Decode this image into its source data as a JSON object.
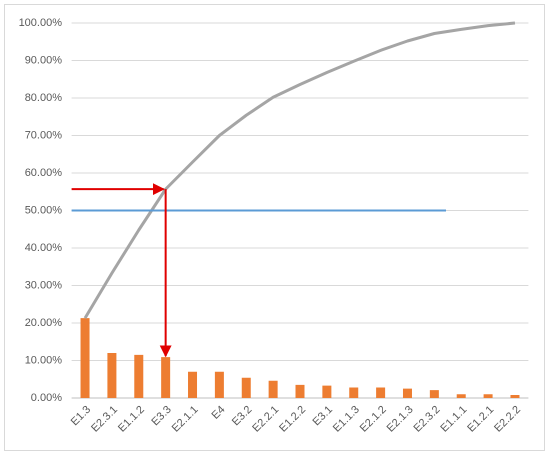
{
  "chart_data": {
    "type": "pareto",
    "categories": [
      "E1.3",
      "E2.3.1",
      "E1.1.2",
      "E3.3",
      "E2.1.1",
      "E4",
      "E3.2",
      "E2.2.1",
      "E1.2.2",
      "E3.1",
      "E1.1.3",
      "E2.1.2",
      "E2.1.3",
      "E2.3.2",
      "E1.1.1",
      "E1.2.1",
      "E2.2.2"
    ],
    "series": [
      {
        "type": "bar",
        "color": "#ed7d31",
        "values": [
          21.3,
          12,
          11.5,
          10.9,
          7,
          7,
          5.4,
          4.6,
          3.5,
          3.3,
          2.8,
          2.8,
          2.5,
          2.1,
          1,
          1,
          0.8
        ]
      },
      {
        "type": "line",
        "color": "#a5a5a5",
        "values": [
          21.3,
          33.3,
          44.8,
          55.7,
          62.9,
          70,
          75.4,
          80.2,
          83.6,
          86.8,
          89.8,
          92.7,
          95.2,
          97.2,
          98.3,
          99.3,
          100
        ]
      }
    ],
    "threshold": 50,
    "threshold_color": "#5b9bd5",
    "arrow_color": "#e00000",
    "ylim": [
      0,
      100
    ],
    "yticks": [
      {
        "value": 0,
        "label": "0.00%"
      },
      {
        "value": 10,
        "label": "10.00%"
      },
      {
        "value": 20,
        "label": "20.00%"
      },
      {
        "value": 30,
        "label": "30.00%"
      },
      {
        "value": 40,
        "label": "40.00%"
      },
      {
        "value": 50,
        "label": "50.00%"
      },
      {
        "value": 60,
        "label": "60.00%"
      },
      {
        "value": 70,
        "label": "70.00%"
      },
      {
        "value": 80,
        "label": "80.00%"
      },
      {
        "value": 90,
        "label": "90.00%"
      },
      {
        "value": 100,
        "label": "100.00%"
      }
    ],
    "grid": true
  }
}
